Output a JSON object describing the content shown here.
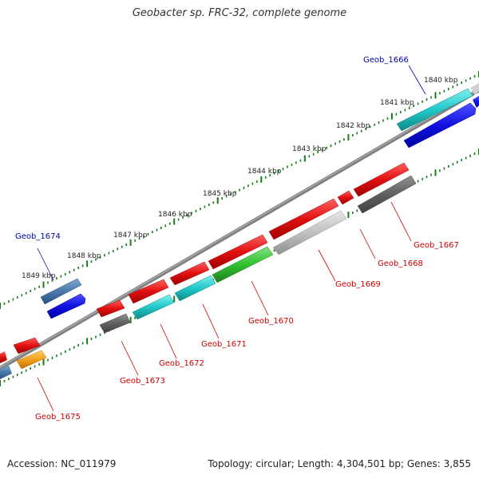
{
  "title": "Geobacter sp. FRC-32, complete genome",
  "footer": {
    "accession": "Accession: NC_011979",
    "summary": "Topology: circular; Length: 4,304,501 bp; Genes: 3,855"
  },
  "scale_labels": [
    "1840 kbp",
    "1841 kbp",
    "1842 kbp",
    "1843 kbp",
    "1844 kbp",
    "1845 kbp",
    "1846 kbp",
    "1847 kbp",
    "1848 kbp",
    "1849 kbp"
  ],
  "genes": [
    {
      "name": "Geob_1666",
      "color": "#0000aa"
    },
    {
      "name": "Geob_1667",
      "color": "#cc0000"
    },
    {
      "name": "Geob_1668",
      "color": "#cc0000"
    },
    {
      "name": "Geob_1669",
      "color": "#cc0000"
    },
    {
      "name": "Geob_1670",
      "color": "#cc0000"
    },
    {
      "name": "Geob_1671",
      "color": "#cc0000"
    },
    {
      "name": "Geob_1672",
      "color": "#cc0000"
    },
    {
      "name": "Geob_1673",
      "color": "#cc0000"
    },
    {
      "name": "Geob_1674",
      "color": "#0000aa"
    },
    {
      "name": "Geob_1675",
      "color": "#cc0000"
    }
  ],
  "colors": {
    "backbone": "#808080",
    "tick": "#1a7a1a",
    "red": "#e01010",
    "cyan": "#20c8c8",
    "blue": "#1010e0",
    "green": "#30c030",
    "gray_dark": "#606060",
    "gray_light": "#c0c0c0",
    "steel": "#4a7aaa",
    "orange": "#f0a020"
  }
}
